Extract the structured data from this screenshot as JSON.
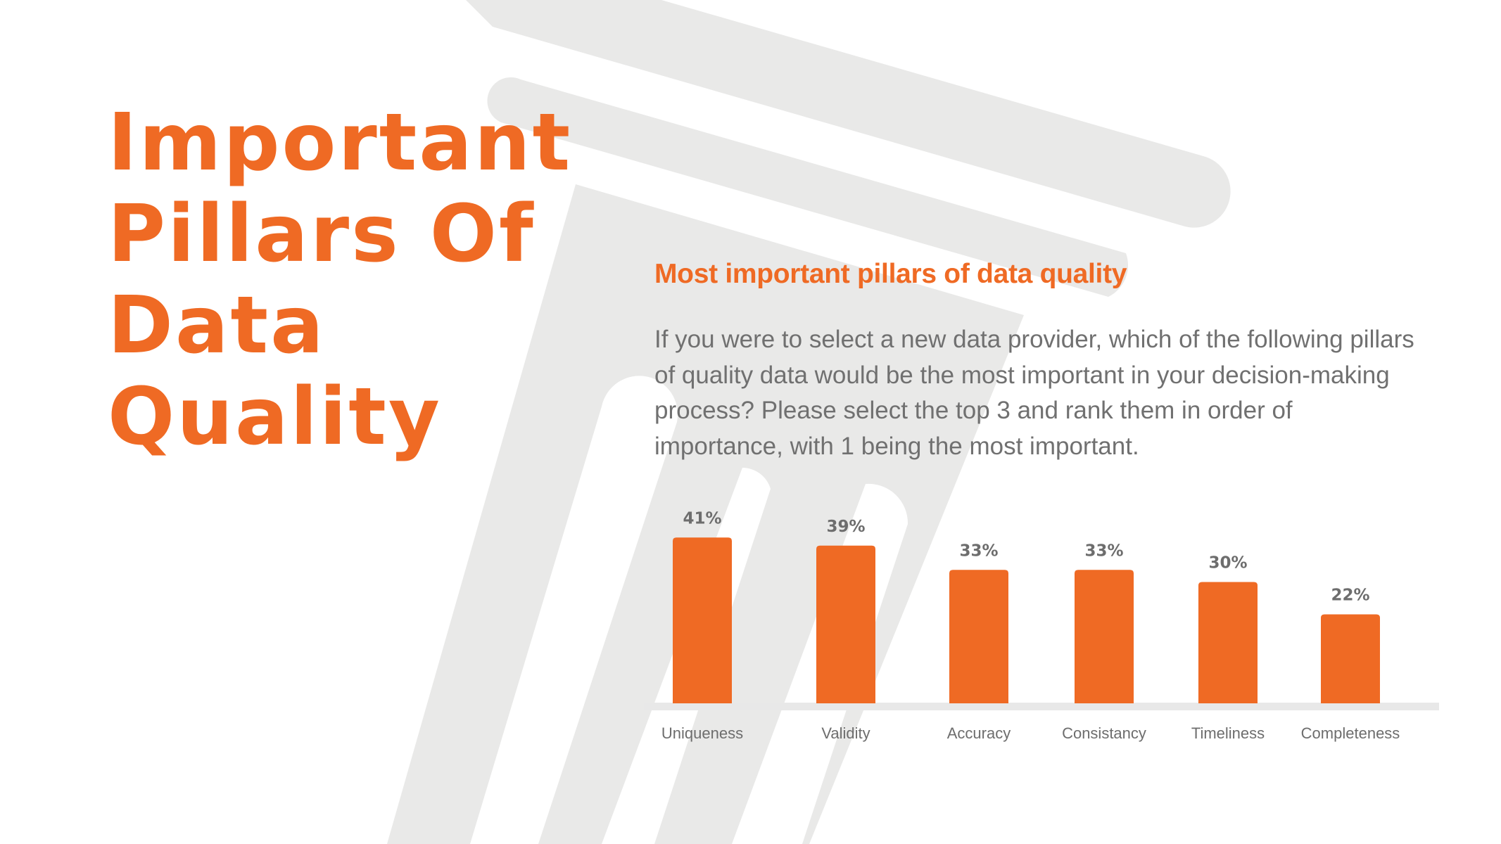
{
  "title_lines": [
    "Important",
    "Pillars Of",
    "Data",
    "Quality"
  ],
  "colors": {
    "accent": "#ef6a24",
    "text_gray": "#707070",
    "background_pillar": "#e9e9e8",
    "baseline": "#e8e8e8"
  },
  "chart_data": {
    "type": "bar",
    "title": "Most important pillars of data quality",
    "subtitle": "If you were to select a new data provider, which of the following pillars of quality data would be the most important in your decision-making process? Please select the top 3 and rank them in order of importance, with 1 being the most important.",
    "categories": [
      "Uniqueness",
      "Validity",
      "Accuracy",
      "Consistancy",
      "Timeliness",
      "Completeness"
    ],
    "values": [
      41,
      39,
      33,
      33,
      30,
      22
    ],
    "value_labels": [
      "41%",
      "39%",
      "33%",
      "33%",
      "30%",
      "22%"
    ],
    "unit": "%",
    "ylim": [
      0,
      41
    ],
    "grid": false,
    "legend": "none",
    "xlabel": "",
    "ylabel": ""
  }
}
